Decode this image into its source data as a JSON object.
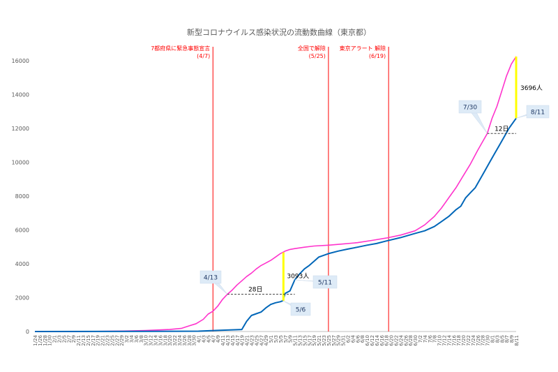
{
  "chart_data": {
    "type": "line",
    "title": "新型コロナウイルス感染状況の流動数曲線（東京都）",
    "ylim": [
      0,
      16000
    ],
    "yticks": [
      0,
      2000,
      4000,
      6000,
      8000,
      10000,
      12000,
      14000,
      16000
    ],
    "x_start": "2020-01-24",
    "x_end": "2020-08-11",
    "xtick_labels": [
      "1/24",
      "1/26",
      "1/28",
      "1/30",
      "2/1",
      "2/3",
      "2/5",
      "2/7",
      "2/9",
      "2/11",
      "2/13",
      "2/15",
      "2/17",
      "2/19",
      "2/21",
      "2/23",
      "2/25",
      "2/27",
      "2/29",
      "3/2",
      "3/4",
      "3/6",
      "3/8",
      "3/10",
      "3/12",
      "3/14",
      "3/16",
      "3/18",
      "3/20",
      "3/22",
      "3/24",
      "3/26",
      "3/28",
      "3/30",
      "4/1",
      "4/3",
      "4/5",
      "4/7",
      "4/9",
      "4/11",
      "4/13",
      "4/15",
      "4/17",
      "4/19",
      "4/21",
      "4/23",
      "4/25",
      "4/27",
      "4/29",
      "5/1",
      "5/3",
      "5/5",
      "5/7",
      "5/9",
      "5/11",
      "5/13",
      "5/15",
      "5/17",
      "5/19",
      "5/21",
      "5/23",
      "5/25",
      "5/27",
      "5/29",
      "5/31",
      "6/2",
      "6/4",
      "6/6",
      "6/8",
      "6/10",
      "6/12",
      "6/14",
      "6/16",
      "6/18",
      "6/20",
      "6/22",
      "6/24",
      "6/26",
      "6/28",
      "6/30",
      "7/2",
      "7/4",
      "7/6",
      "7/8",
      "7/10",
      "7/12",
      "7/14",
      "7/16",
      "7/18",
      "7/20",
      "7/22",
      "7/24",
      "7/26",
      "7/28",
      "7/30",
      "8/1",
      "8/3",
      "8/5",
      "8/7",
      "8/9",
      "8/11"
    ],
    "grid": false,
    "series": [
      {
        "color": "#ff33cc",
        "points": [
          [
            "2020-01-24",
            0
          ],
          [
            "2020-02-15",
            5
          ],
          [
            "2020-03-01",
            30
          ],
          [
            "2020-03-10",
            60
          ],
          [
            "2020-03-20",
            120
          ],
          [
            "2020-03-25",
            190
          ],
          [
            "2020-03-28",
            330
          ],
          [
            "2020-03-31",
            460
          ],
          [
            "2020-04-03",
            720
          ],
          [
            "2020-04-05",
            1030
          ],
          [
            "2020-04-07",
            1200
          ],
          [
            "2020-04-09",
            1500
          ],
          [
            "2020-04-11",
            1900
          ],
          [
            "2020-04-13",
            2200
          ],
          [
            "2020-04-15",
            2450
          ],
          [
            "2020-04-17",
            2750
          ],
          [
            "2020-04-19",
            3000
          ],
          [
            "2020-04-21",
            3250
          ],
          [
            "2020-04-23",
            3450
          ],
          [
            "2020-04-25",
            3700
          ],
          [
            "2020-04-27",
            3900
          ],
          [
            "2020-04-29",
            4050
          ],
          [
            "2020-05-01",
            4200
          ],
          [
            "2020-05-03",
            4400
          ],
          [
            "2020-05-05",
            4600
          ],
          [
            "2020-05-07",
            4750
          ],
          [
            "2020-05-09",
            4850
          ],
          [
            "2020-05-11",
            4900
          ],
          [
            "2020-05-15",
            4980
          ],
          [
            "2020-05-19",
            5050
          ],
          [
            "2020-05-25",
            5100
          ],
          [
            "2020-05-31",
            5170
          ],
          [
            "2020-06-06",
            5250
          ],
          [
            "2020-06-12",
            5380
          ],
          [
            "2020-06-18",
            5520
          ],
          [
            "2020-06-24",
            5700
          ],
          [
            "2020-06-30",
            5950
          ],
          [
            "2020-07-04",
            6300
          ],
          [
            "2020-07-08",
            6800
          ],
          [
            "2020-07-11",
            7300
          ],
          [
            "2020-07-14",
            7900
          ],
          [
            "2020-07-17",
            8500
          ],
          [
            "2020-07-20",
            9200
          ],
          [
            "2020-07-23",
            9900
          ],
          [
            "2020-07-26",
            10700
          ],
          [
            "2020-07-28",
            11200
          ],
          [
            "2020-07-30",
            11700
          ],
          [
            "2020-08-01",
            12600
          ],
          [
            "2020-08-03",
            13300
          ],
          [
            "2020-08-05",
            14200
          ],
          [
            "2020-08-07",
            15100
          ],
          [
            "2020-08-09",
            15800
          ],
          [
            "2020-08-11",
            16250
          ]
        ]
      },
      {
        "color": "#0066b8",
        "points": [
          [
            "2020-01-24",
            0
          ],
          [
            "2020-03-10",
            10
          ],
          [
            "2020-04-01",
            20
          ],
          [
            "2020-04-08",
            60
          ],
          [
            "2020-04-15",
            100
          ],
          [
            "2020-04-19",
            120
          ],
          [
            "2020-04-21",
            600
          ],
          [
            "2020-04-23",
            950
          ],
          [
            "2020-04-25",
            1050
          ],
          [
            "2020-04-27",
            1150
          ],
          [
            "2020-04-29",
            1400
          ],
          [
            "2020-05-01",
            1600
          ],
          [
            "2020-05-03",
            1700
          ],
          [
            "2020-05-05",
            1760
          ],
          [
            "2020-05-06",
            1820
          ],
          [
            "2020-05-07",
            2250
          ],
          [
            "2020-05-09",
            2400
          ],
          [
            "2020-05-11",
            3050
          ],
          [
            "2020-05-13",
            3400
          ],
          [
            "2020-05-15",
            3700
          ],
          [
            "2020-05-17",
            3900
          ],
          [
            "2020-05-19",
            4150
          ],
          [
            "2020-05-21",
            4400
          ],
          [
            "2020-05-25",
            4600
          ],
          [
            "2020-05-29",
            4750
          ],
          [
            "2020-06-02",
            4870
          ],
          [
            "2020-06-06",
            4980
          ],
          [
            "2020-06-10",
            5100
          ],
          [
            "2020-06-14",
            5200
          ],
          [
            "2020-06-18",
            5350
          ],
          [
            "2020-06-24",
            5550
          ],
          [
            "2020-06-30",
            5800
          ],
          [
            "2020-07-04",
            5950
          ],
          [
            "2020-07-08",
            6200
          ],
          [
            "2020-07-11",
            6500
          ],
          [
            "2020-07-14",
            6800
          ],
          [
            "2020-07-17",
            7200
          ],
          [
            "2020-07-19",
            7400
          ],
          [
            "2020-07-21",
            7900
          ],
          [
            "2020-07-23",
            8200
          ],
          [
            "2020-07-25",
            8500
          ],
          [
            "2020-07-27",
            9000
          ],
          [
            "2020-07-29",
            9500
          ],
          [
            "2020-07-31",
            10000
          ],
          [
            "2020-08-02",
            10500
          ],
          [
            "2020-08-04",
            11000
          ],
          [
            "2020-08-06",
            11500
          ],
          [
            "2020-08-08",
            12000
          ],
          [
            "2020-08-11",
            12600
          ]
        ]
      }
    ],
    "events": [
      {
        "date": "2020-04-07",
        "label_line1": "7都府県に緊急事態宣言",
        "label_line2": "(4/7)"
      },
      {
        "date": "2020-05-25",
        "label_line1": "全国で解除",
        "label_line2": "(5/25)"
      },
      {
        "date": "2020-06-19",
        "label_line1": "東京アラート 解除",
        "label_line2": "(6/19)"
      }
    ],
    "annotations": {
      "callout_413": "4/13",
      "callout_56": "5/6",
      "callout_511": "5/11",
      "callout_730": "7/30",
      "callout_811": "8/11",
      "gap_may": "3093人",
      "gap_aug": "3696人",
      "lag_may": "28日",
      "lag_aug": "12日"
    }
  }
}
